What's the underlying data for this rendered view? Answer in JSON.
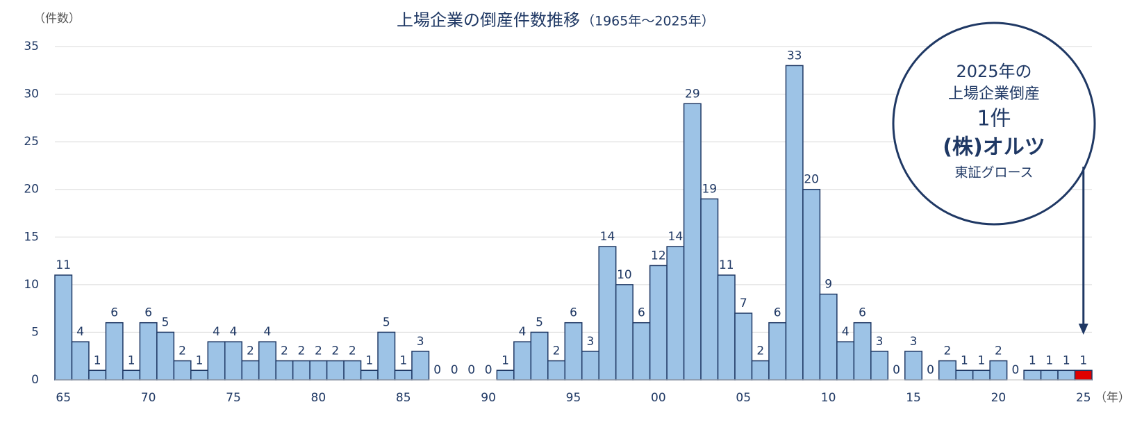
{
  "chart_data": {
    "type": "bar",
    "title": "上場企業の倒産件数推移",
    "subtitle": "（1965年～2025年）",
    "y_axis_label": "（件数）",
    "x_axis_label": "（年）",
    "categories": [
      "65",
      null,
      null,
      null,
      null,
      "70",
      null,
      null,
      null,
      null,
      "75",
      null,
      null,
      null,
      null,
      "80",
      null,
      null,
      null,
      null,
      "85",
      null,
      null,
      null,
      null,
      "90",
      null,
      null,
      null,
      null,
      "95",
      null,
      null,
      null,
      null,
      "00",
      null,
      null,
      null,
      null,
      "05",
      null,
      null,
      null,
      null,
      "10",
      null,
      null,
      null,
      null,
      "15",
      null,
      null,
      null,
      null,
      "20",
      null,
      null,
      null,
      null,
      "25"
    ],
    "values": [
      11,
      4,
      1,
      6,
      1,
      6,
      5,
      2,
      1,
      4,
      4,
      2,
      4,
      2,
      2,
      2,
      2,
      2,
      1,
      5,
      1,
      3,
      0,
      0,
      0,
      0,
      1,
      4,
      5,
      2,
      6,
      3,
      14,
      10,
      6,
      12,
      14,
      29,
      19,
      11,
      7,
      2,
      6,
      33,
      20,
      9,
      4,
      6,
      3,
      0,
      3,
      0,
      2,
      1,
      1,
      2,
      0,
      1,
      1,
      1,
      1
    ],
    "color": "#9dc3e6",
    "highlight_color": "#e00000",
    "ylim": [
      0,
      35
    ],
    "yticks": [
      0,
      5,
      10,
      15,
      20,
      25,
      30,
      35
    ],
    "grid": true,
    "annotation": {
      "lines": [
        "2025年の",
        "上場企業倒産",
        "1件",
        "(株)オルツ",
        "東証グロース"
      ]
    }
  }
}
